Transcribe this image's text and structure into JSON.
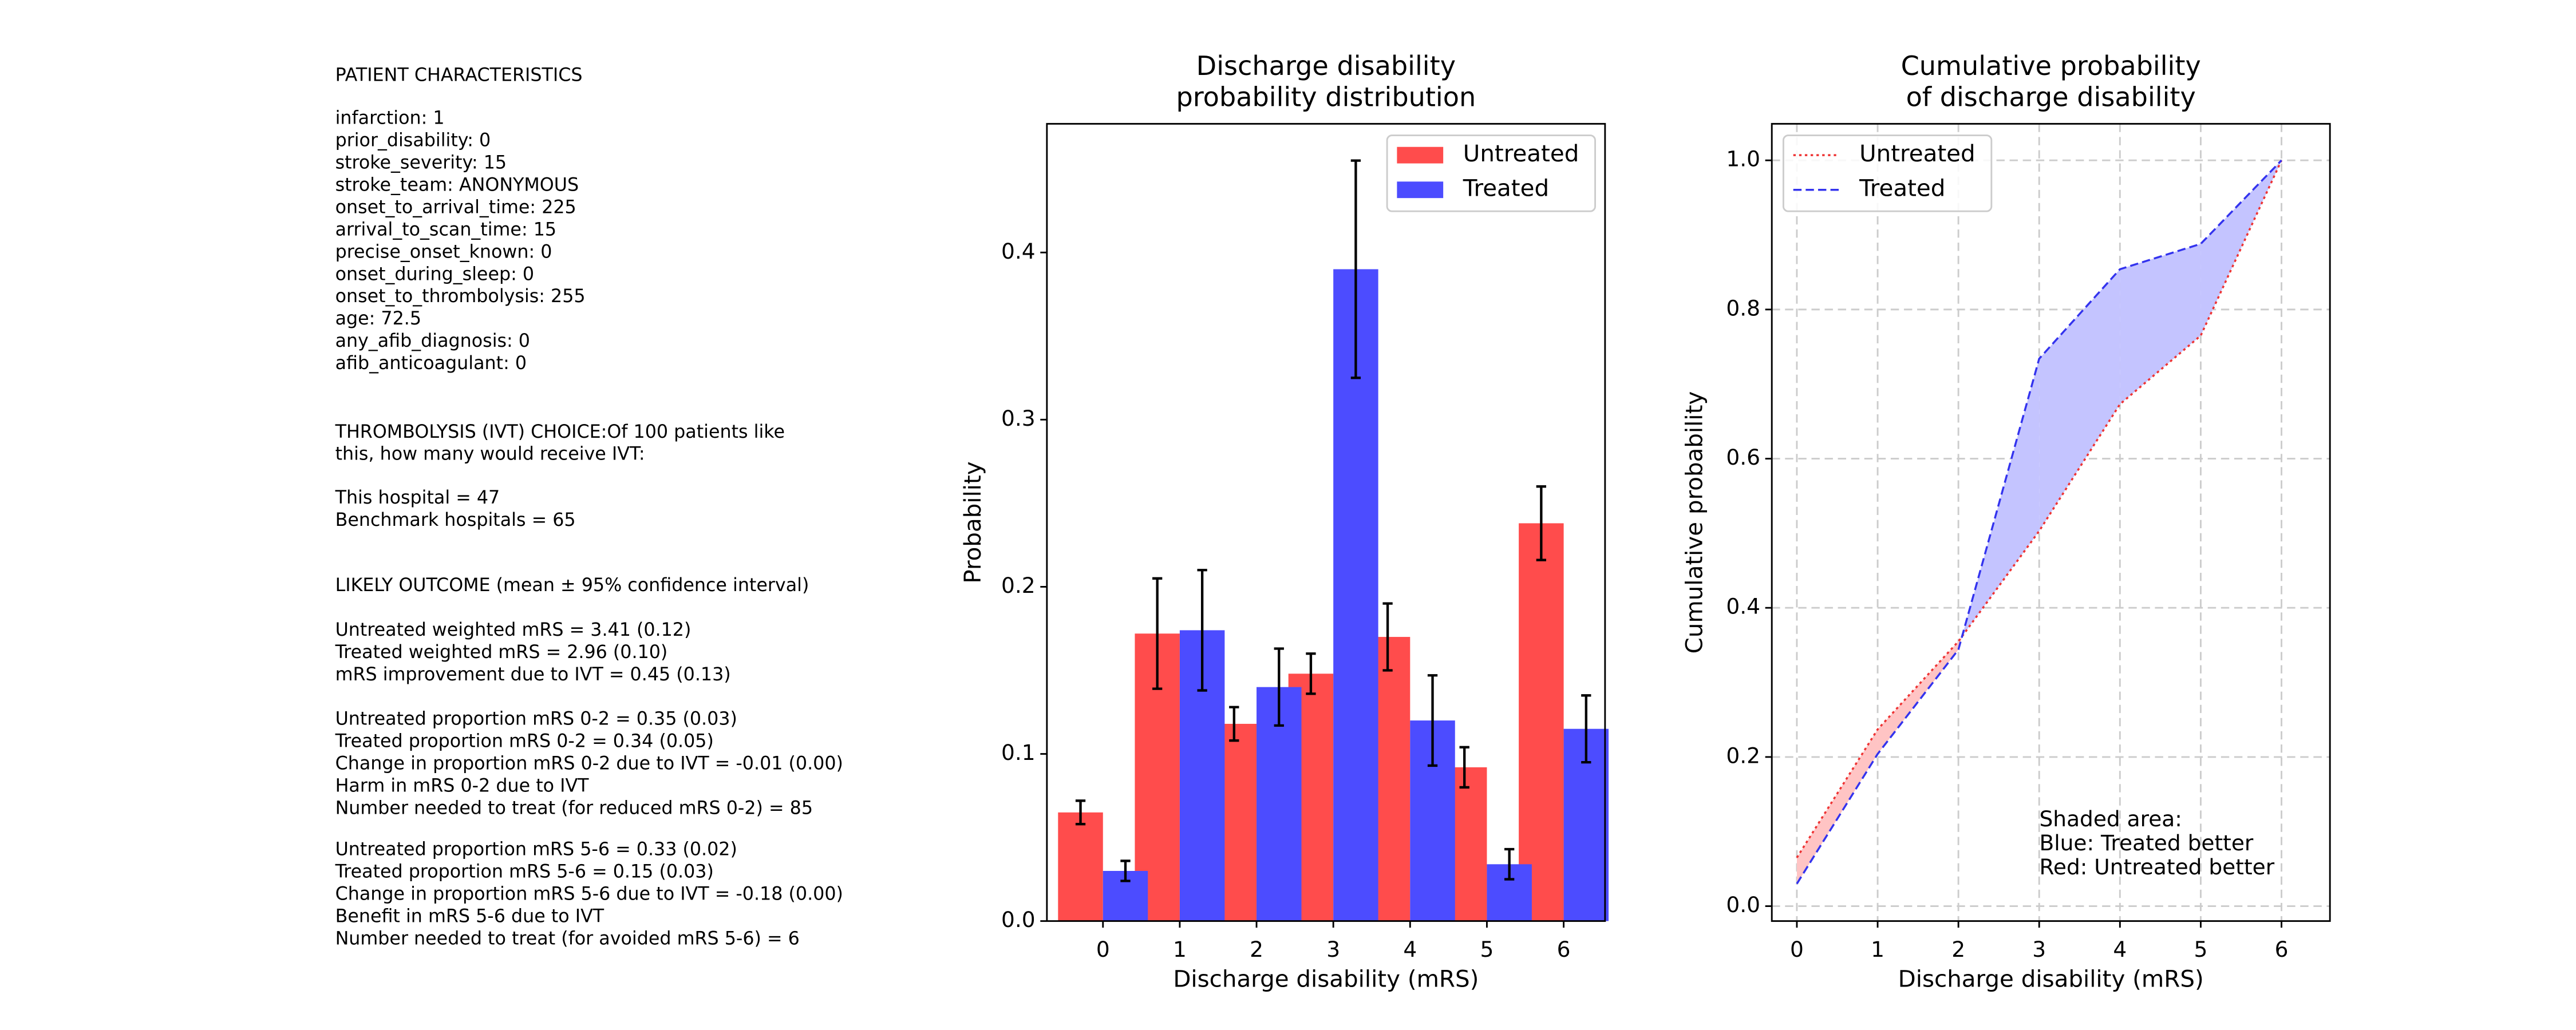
{
  "patient_panel": {
    "blocks": [
      [
        "PATIENT CHARACTERISTICS"
      ],
      [
        "infarction: 1",
        "prior_disability: 0",
        "stroke_severity: 15",
        "stroke_team: ANONYMOUS",
        "onset_to_arrival_time: 225",
        "arrival_to_scan_time: 15",
        "precise_onset_known: 0",
        "onset_during_sleep: 0",
        "onset_to_thrombolysis: 255",
        "age: 72.5",
        "any_afib_diagnosis: 0",
        "afib_anticoagulant: 0"
      ],
      [
        "THROMBOLYSIS (IVT) CHOICE:Of 100 patients like",
        "this, how many would receive IVT:"
      ],
      [
        "This hospital = 47",
        "Benchmark hospitals = 65"
      ],
      [
        "LIKELY OUTCOME (mean ± 95% confidence interval)"
      ],
      [
        "Untreated weighted mRS = 3.41 (0.12)",
        "Treated weighted mRS = 2.96 (0.10)",
        "mRS improvement due to IVT = 0.45 (0.13)"
      ],
      [
        "Untreated proportion mRS 0-2 = 0.35 (0.03)",
        "Treated proportion mRS 0-2 = 0.34 (0.05)",
        "Change in proportion mRS 0-2 due to IVT = -0.01 (0.00)",
        "Harm in mRS 0-2 due to IVT",
        "Number needed to treat (for reduced mRS 0-2) = 85"
      ],
      [
        "Untreated proportion mRS 5-6 = 0.33 (0.02)",
        "Treated proportion mRS 5-6 = 0.15 (0.03)",
        "Change in proportion mRS 5-6 due to IVT = -0.18 (0.00)",
        "Benefit in mRS 5-6 due to IVT",
        "Number needed to treat (for avoided mRS 5-6) = 6"
      ]
    ]
  },
  "chart_data": [
    {
      "type": "bar",
      "title": [
        "Discharge disability",
        "probability distribution"
      ],
      "x_label": "Discharge disability (mRS)",
      "y_label": "Probability",
      "categories": [
        "0",
        "1",
        "2",
        "3",
        "4",
        "5",
        "6"
      ],
      "series": [
        {
          "name": "Untreated",
          "color": "#ff4c4c",
          "values": [
            0.065,
            0.172,
            0.118,
            0.148,
            0.17,
            0.092,
            0.238
          ],
          "errors": [
            0.007,
            0.033,
            0.01,
            0.012,
            0.02,
            0.012,
            0.022
          ]
        },
        {
          "name": "Treated",
          "color": "#4c4cff",
          "values": [
            0.03,
            0.174,
            0.14,
            0.39,
            0.12,
            0.034,
            0.115
          ],
          "errors": [
            0.006,
            0.036,
            0.023,
            0.065,
            0.027,
            0.009,
            0.02
          ]
        }
      ],
      "ylim": [
        0,
        0.477
      ],
      "yticks": [
        {
          "value": 0,
          "label": "0.0"
        },
        0.1,
        0.2,
        0.3,
        0.4
      ],
      "legend": "upper right",
      "grid": false
    },
    {
      "type": "line",
      "title": [
        "Cumulative probability",
        "of discharge disability"
      ],
      "x_label": "Discharge disability (mRS)",
      "y_label": "Cumulative probability",
      "x": [
        0,
        1,
        2,
        3,
        4,
        5,
        6
      ],
      "series": [
        {
          "name": "Untreated",
          "color": "#ee3333",
          "dash": "dotted",
          "values": [
            0.065,
            0.237,
            0.355,
            0.503,
            0.673,
            0.765,
            1.0
          ]
        },
        {
          "name": "Treated",
          "color": "#3333ee",
          "dash": "dashed",
          "values": [
            0.03,
            0.204,
            0.344,
            0.734,
            0.854,
            0.888,
            1.0
          ]
        }
      ],
      "xlim": [
        -0.31,
        6.6
      ],
      "xticks": [
        0,
        1,
        2,
        3,
        4,
        5,
        6
      ],
      "ylim": [
        -0.02,
        1.049
      ],
      "yticks": [
        {
          "value": 0,
          "label": "0.0"
        },
        0.2,
        0.4,
        0.6,
        0.8,
        {
          "value": 1,
          "label": "1.0"
        }
      ],
      "fill_colors": {
        "treated_better": "#c4c4ff",
        "untreated_better": "#ffc4c4"
      },
      "annotation": [
        "Shaded area:",
        "Blue: Treated better",
        "Red: Untreated better"
      ],
      "legend": "upper left",
      "grid": true
    }
  ]
}
